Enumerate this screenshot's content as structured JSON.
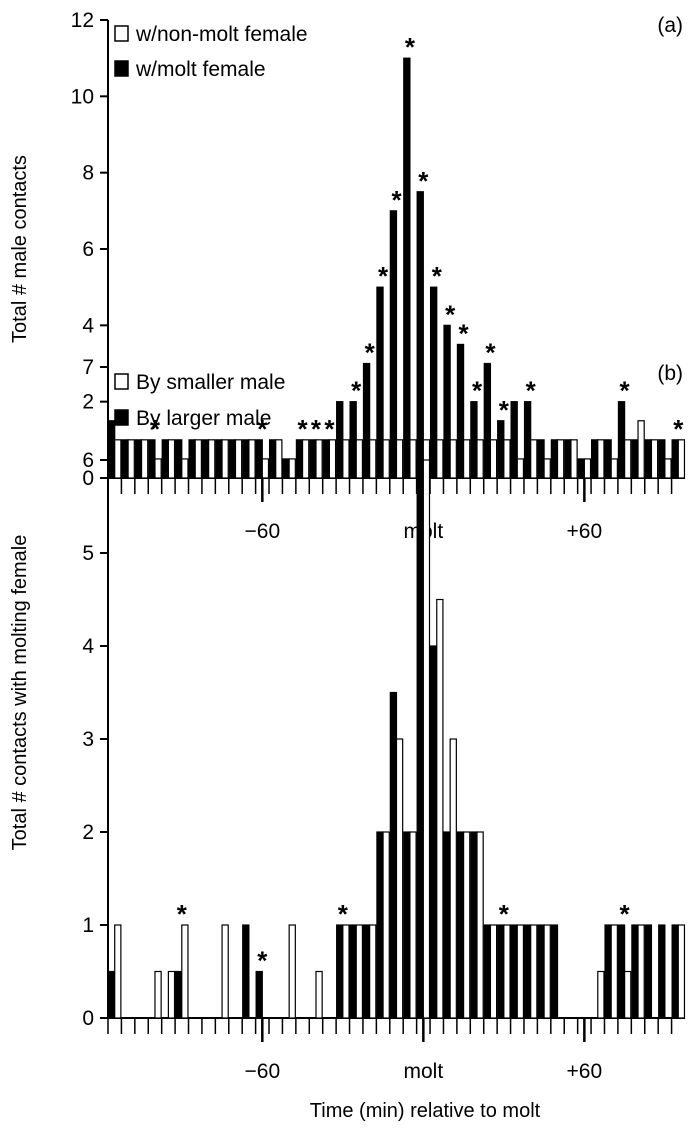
{
  "figure": {
    "xlabel": "Time (min) relative to molt"
  },
  "chart_data": [
    {
      "type": "bar",
      "panel_label": "(a)",
      "title": "",
      "xlabel": "",
      "ylabel": "Total # male contacts",
      "ylim": [
        0,
        12
      ],
      "yticks": [
        0,
        2,
        4,
        6,
        8,
        10,
        12
      ],
      "xlim": [
        -115,
        95
      ],
      "xticks": [
        {
          "x": -60,
          "label": "−60"
        },
        {
          "x": 0,
          "label": "molt"
        },
        {
          "x": 60,
          "label": "+60"
        }
      ],
      "grid": false,
      "legend_position": "top-left",
      "bin_width_min": 5,
      "bin_centers": [
        -115,
        -110,
        -105,
        -100,
        -95,
        -90,
        -85,
        -80,
        -75,
        -70,
        -65,
        -60,
        -55,
        -50,
        -45,
        -40,
        -35,
        -30,
        -25,
        -20,
        -15,
        -10,
        -5,
        0,
        5,
        10,
        15,
        20,
        25,
        30,
        35,
        40,
        45,
        50,
        55,
        60,
        65,
        70,
        75,
        80,
        85,
        90,
        95
      ],
      "series": [
        {
          "name": "w/molt female",
          "color": "#000000",
          "fill": "solid",
          "values": [
            1.5,
            1,
            1,
            1,
            1,
            1,
            1,
            1,
            1,
            1,
            1,
            1,
            1,
            0.5,
            1,
            1,
            1,
            2,
            2,
            3,
            5,
            7,
            11,
            7.5,
            5,
            4,
            3.5,
            2,
            3,
            1.5,
            2,
            2,
            1,
            1,
            1,
            0.5,
            1,
            1,
            2,
            1,
            1,
            1,
            1
          ]
        },
        {
          "name": "w/non-molt female",
          "color": "#ffffff",
          "fill": "hollow",
          "values": [
            1,
            1,
            1,
            0.5,
            1,
            0.5,
            1,
            1,
            1,
            1,
            1,
            0.5,
            1,
            0.5,
            1,
            1,
            1,
            1,
            1,
            1,
            1,
            1,
            1,
            1,
            1,
            1,
            1,
            1,
            1,
            1,
            0.5,
            1,
            0.5,
            1,
            1,
            0.5,
            1,
            0.5,
            1,
            1.5,
            1,
            0.5,
            1
          ]
        }
      ],
      "significance_stars_at": [
        -100,
        -60,
        -45,
        -40,
        -35,
        -25,
        -20,
        -15,
        -10,
        -5,
        0,
        5,
        10,
        15,
        20,
        25,
        30,
        40,
        75,
        95
      ]
    },
    {
      "type": "bar",
      "panel_label": "(b)",
      "title": "",
      "xlabel": "Time (min) relative to molt",
      "ylabel": "Total # contacts with molting female",
      "ylim": [
        0,
        7
      ],
      "yticks": [
        0,
        1,
        2,
        3,
        4,
        5,
        6,
        7
      ],
      "xlim": [
        -115,
        95
      ],
      "xticks": [
        {
          "x": -60,
          "label": "−60"
        },
        {
          "x": 0,
          "label": "molt"
        },
        {
          "x": 60,
          "label": "+60"
        }
      ],
      "grid": false,
      "legend_position": "top-left",
      "bin_width_min": 5,
      "bin_centers": [
        -115,
        -110,
        -105,
        -100,
        -95,
        -90,
        -85,
        -80,
        -75,
        -70,
        -65,
        -60,
        -55,
        -50,
        -45,
        -40,
        -35,
        -30,
        -25,
        -20,
        -15,
        -10,
        -5,
        0,
        5,
        10,
        15,
        20,
        25,
        30,
        35,
        40,
        45,
        50,
        55,
        60,
        65,
        70,
        75,
        80,
        85,
        90,
        95
      ],
      "series": [
        {
          "name": "By larger male",
          "color": "#000000",
          "fill": "solid",
          "values": [
            0.5,
            0,
            0,
            0,
            0,
            0.5,
            0,
            0,
            0,
            0,
            1,
            0.5,
            0,
            0,
            0,
            0,
            0,
            1,
            1,
            1,
            2,
            3.5,
            2,
            6,
            4,
            2,
            2,
            2,
            1,
            1,
            1,
            1,
            1,
            1,
            0,
            0,
            0,
            1,
            1,
            1,
            1,
            1,
            1
          ]
        },
        {
          "name": "By smaller male",
          "color": "#ffffff",
          "fill": "hollow",
          "values": [
            1,
            0,
            0,
            0.5,
            0.5,
            1,
            0,
            0,
            1,
            0,
            0,
            0,
            0,
            1,
            0,
            0.5,
            0,
            1,
            1,
            1,
            2,
            3,
            2,
            6,
            4.5,
            3,
            2,
            2,
            1,
            1,
            1,
            1,
            1,
            0,
            0,
            0,
            0.5,
            1,
            0.5,
            1,
            0,
            0,
            1
          ]
        }
      ],
      "significance_stars_at": [
        -90,
        -60,
        -30,
        30,
        75
      ]
    }
  ]
}
